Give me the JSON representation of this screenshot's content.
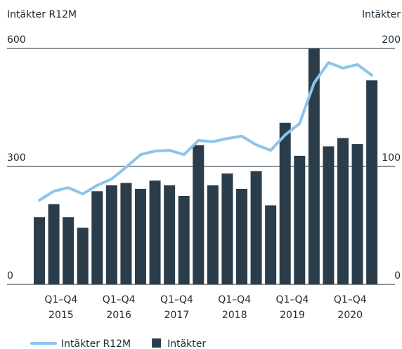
{
  "chart_data": {
    "type": "bar_line",
    "y_axis_label": "Intäkter R12M",
    "y2_axis_label": "Intäkter",
    "categories": [
      null,
      null,
      null,
      null,
      null,
      null,
      null,
      null,
      null,
      null,
      null,
      null,
      null,
      null,
      null,
      null,
      null,
      null,
      null,
      null,
      null,
      null,
      null,
      null
    ],
    "period_labels": [
      {
        "period": "Q1–Q4",
        "year": "2015"
      },
      {
        "period": "Q1–Q4",
        "year": "2016"
      },
      {
        "period": "Q1–Q4",
        "year": "2017"
      },
      {
        "period": "Q1–Q4",
        "year": "2018"
      },
      {
        "period": "Q1–Q4",
        "year": "2019"
      },
      {
        "period": "Q1–Q4",
        "year": "2020"
      }
    ],
    "series": [
      {
        "name": "Intäkter R12M",
        "type": "line",
        "color": "#8cc4ec",
        "axis": "y",
        "values": [
          214,
          237,
          246,
          230,
          252,
          268,
          298,
          330,
          339,
          341,
          330,
          366,
          363,
          371,
          377,
          355,
          341,
          380,
          409,
          512,
          564,
          550,
          559,
          532
        ]
      },
      {
        "name": "Intäkter",
        "type": "bar",
        "color": "#2b3d4a",
        "axis": "y2",
        "values": [
          57,
          68,
          57,
          48,
          79,
          84,
          86,
          81,
          88,
          84,
          75,
          118,
          84,
          94,
          81,
          96,
          67,
          137,
          109,
          200,
          117,
          124,
          119,
          173
        ]
      }
    ],
    "ylim": [
      0,
      600
    ],
    "yticks": [
      0,
      300,
      600
    ],
    "y2lim": [
      0,
      200
    ],
    "y2ticks": [
      0,
      100,
      200
    ],
    "grid": true
  }
}
